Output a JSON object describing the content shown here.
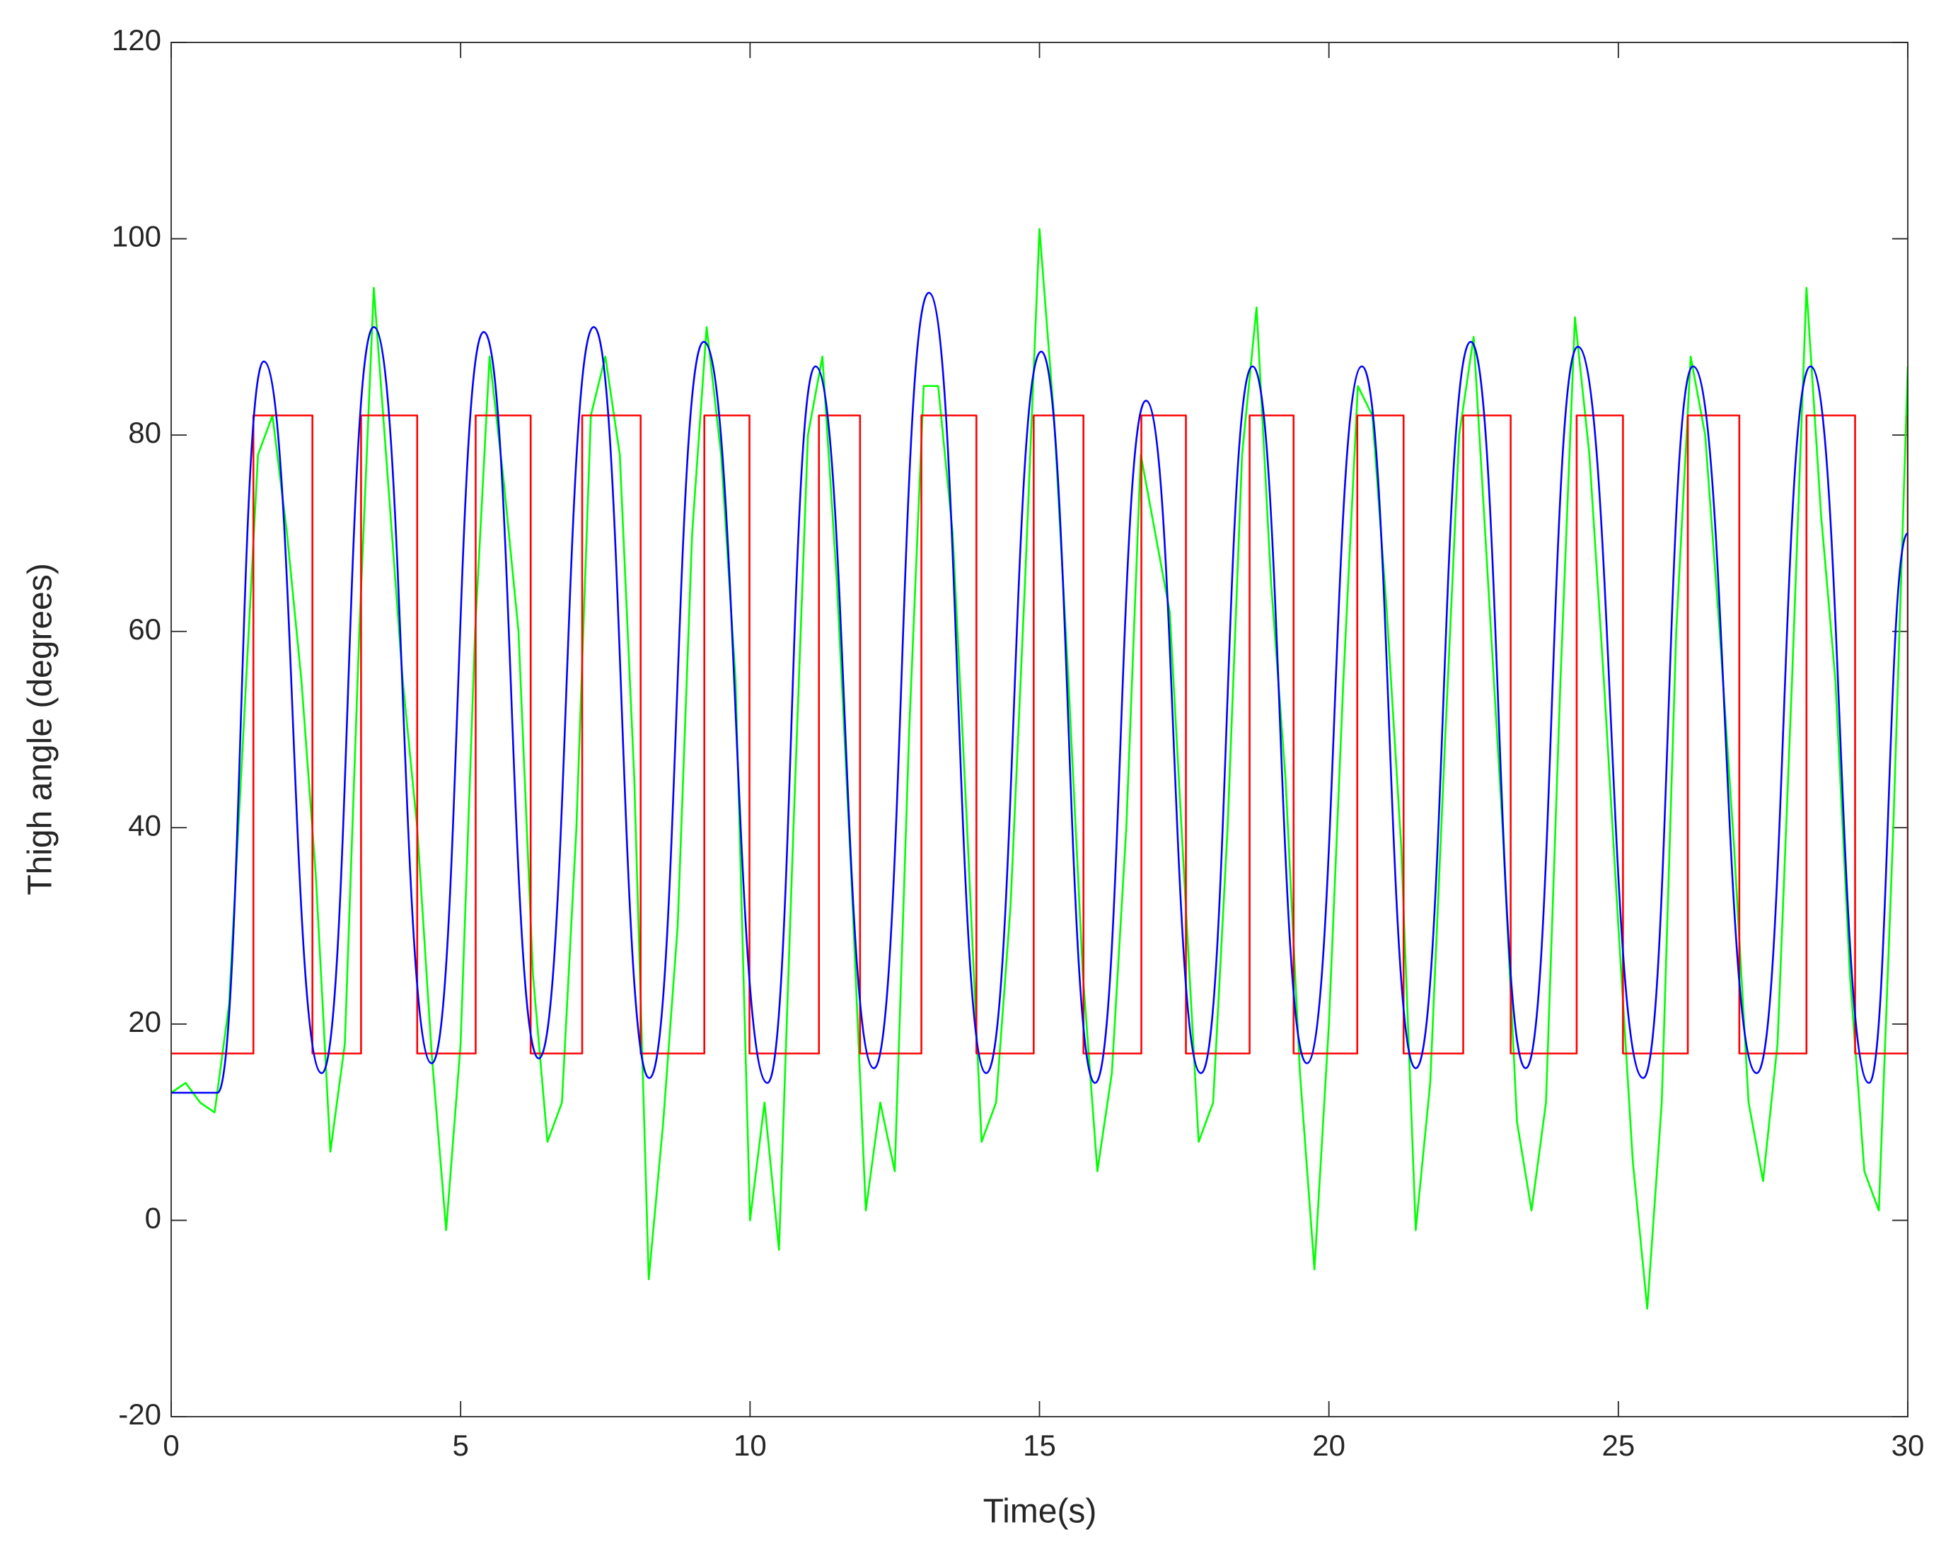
{
  "chart_data": {
    "type": "line",
    "xlabel": "Time(s)",
    "ylabel": "Thigh angle (degrees)",
    "xlim": [
      0,
      30
    ],
    "ylim": [
      -20,
      120
    ],
    "xticks": [
      0,
      5,
      10,
      15,
      20,
      25,
      30
    ],
    "yticks": [
      -20,
      0,
      20,
      40,
      60,
      80,
      100,
      120
    ],
    "grid": false,
    "series": [
      {
        "color": "#00ff00",
        "x": [
          0,
          0.25,
          0.5,
          0.75,
          1,
          1.25,
          1.5,
          1.75,
          2,
          2.25,
          2.5,
          2.75,
          3,
          3.25,
          3.5,
          3.75,
          4,
          4.25,
          4.5,
          4.75,
          5,
          5.25,
          5.5,
          5.75,
          6,
          6.25,
          6.5,
          6.75,
          7,
          7.25,
          7.5,
          7.75,
          8,
          8.25,
          8.5,
          8.75,
          9,
          9.25,
          9.5,
          9.75,
          10,
          10.25,
          10.5,
          10.75,
          11,
          11.25,
          11.5,
          11.75,
          12,
          12.25,
          12.5,
          12.75,
          13,
          13.25,
          13.5,
          13.75,
          14,
          14.25,
          14.5,
          14.75,
          15,
          15.25,
          15.5,
          15.75,
          16,
          16.25,
          16.5,
          16.75,
          17,
          17.25,
          17.5,
          17.75,
          18,
          18.25,
          18.5,
          18.75,
          19,
          19.25,
          19.5,
          19.75,
          20,
          20.25,
          20.5,
          20.75,
          21,
          21.25,
          21.5,
          21.75,
          22,
          22.25,
          22.5,
          22.75,
          23,
          23.25,
          23.5,
          23.75,
          24,
          24.25,
          24.5,
          24.75,
          25,
          25.25,
          25.5,
          25.75,
          26,
          26.25,
          26.5,
          26.75,
          27,
          27.25,
          27.5,
          27.75,
          28,
          28.25,
          28.5,
          28.75,
          29,
          29.25,
          29.5,
          29.75,
          30
        ],
        "values": [
          13,
          14,
          12,
          11,
          22,
          50,
          78,
          82,
          70,
          55,
          35,
          7,
          18,
          60,
          95,
          75,
          55,
          40,
          17,
          -1,
          18,
          60,
          88,
          75,
          60,
          25,
          8,
          12,
          40,
          82,
          88,
          78,
          45,
          -6,
          10,
          30,
          70,
          91,
          78,
          55,
          0,
          12,
          -3,
          40,
          80,
          88,
          65,
          35,
          1,
          12,
          5,
          50,
          85,
          85,
          70,
          40,
          8,
          12,
          32,
          65,
          101,
          82,
          55,
          25,
          5,
          15,
          40,
          78,
          70,
          62,
          35,
          8,
          12,
          40,
          78,
          93,
          65,
          45,
          15,
          -5,
          20,
          55,
          85,
          82,
          62,
          38,
          -1,
          14,
          48,
          80,
          90,
          65,
          40,
          10,
          1,
          12,
          55,
          92,
          78,
          55,
          30,
          6,
          -9,
          12,
          60,
          88,
          80,
          60,
          38,
          12,
          4,
          18,
          55,
          95,
          72,
          55,
          25,
          5,
          1,
          40,
          87
        ]
      },
      {
        "color": "#ff0000",
        "x": [
          0,
          1.42,
          1.42,
          2.44,
          2.44,
          3.28,
          3.28,
          4.25,
          4.25,
          5.26,
          5.26,
          6.21,
          6.21,
          7.1,
          7.1,
          8.11,
          8.11,
          9.21,
          9.21,
          9.99,
          9.99,
          11.19,
          11.19,
          11.9,
          11.9,
          12.96,
          12.96,
          13.91,
          13.91,
          14.9,
          14.9,
          15.76,
          15.76,
          16.76,
          16.76,
          17.53,
          17.53,
          18.63,
          18.63,
          19.39,
          19.39,
          20.49,
          20.49,
          21.29,
          21.29,
          22.32,
          22.32,
          23.14,
          23.14,
          24.28,
          24.28,
          25.08,
          25.08,
          26.2,
          26.2,
          27.09,
          27.09,
          28.25,
          28.25,
          29.09,
          29.09,
          30,
          30
        ],
        "values": [
          17,
          17,
          82,
          82,
          17,
          17,
          82,
          82,
          17,
          17,
          82,
          82,
          17,
          17,
          82,
          82,
          17,
          17,
          82,
          82,
          17,
          17,
          82,
          82,
          17,
          17,
          82,
          82,
          17,
          17,
          82,
          82,
          17,
          17,
          82,
          82,
          17,
          17,
          82,
          82,
          17,
          17,
          82,
          82,
          17,
          17,
          82,
          82,
          17,
          17,
          82,
          82,
          17,
          17,
          82,
          82,
          17,
          17,
          82,
          82,
          17,
          17,
          82
        ]
      },
      {
        "color": "#0000ff",
        "smooth": true,
        "x": [
          0,
          0.8,
          1.6,
          2.6,
          3.5,
          4.5,
          5.4,
          6.35,
          7.3,
          8.26,
          9.2,
          10.3,
          11.13,
          12.14,
          13.09,
          14.08,
          15.03,
          15.96,
          16.84,
          17.79,
          18.68,
          19.62,
          20.57,
          21.5,
          22.45,
          23.4,
          24.3,
          25.43,
          26.29,
          27.39,
          28.32,
          29.33,
          30
        ],
        "values": [
          13,
          13,
          87.5,
          15,
          91,
          16,
          90.5,
          16.5,
          91,
          14.5,
          89.5,
          14,
          87,
          15.5,
          94.5,
          15,
          88.5,
          14,
          83.5,
          15,
          87,
          16,
          87,
          15.5,
          89.5,
          15.5,
          89,
          14.5,
          87,
          15,
          87,
          14,
          70
        ]
      }
    ]
  }
}
